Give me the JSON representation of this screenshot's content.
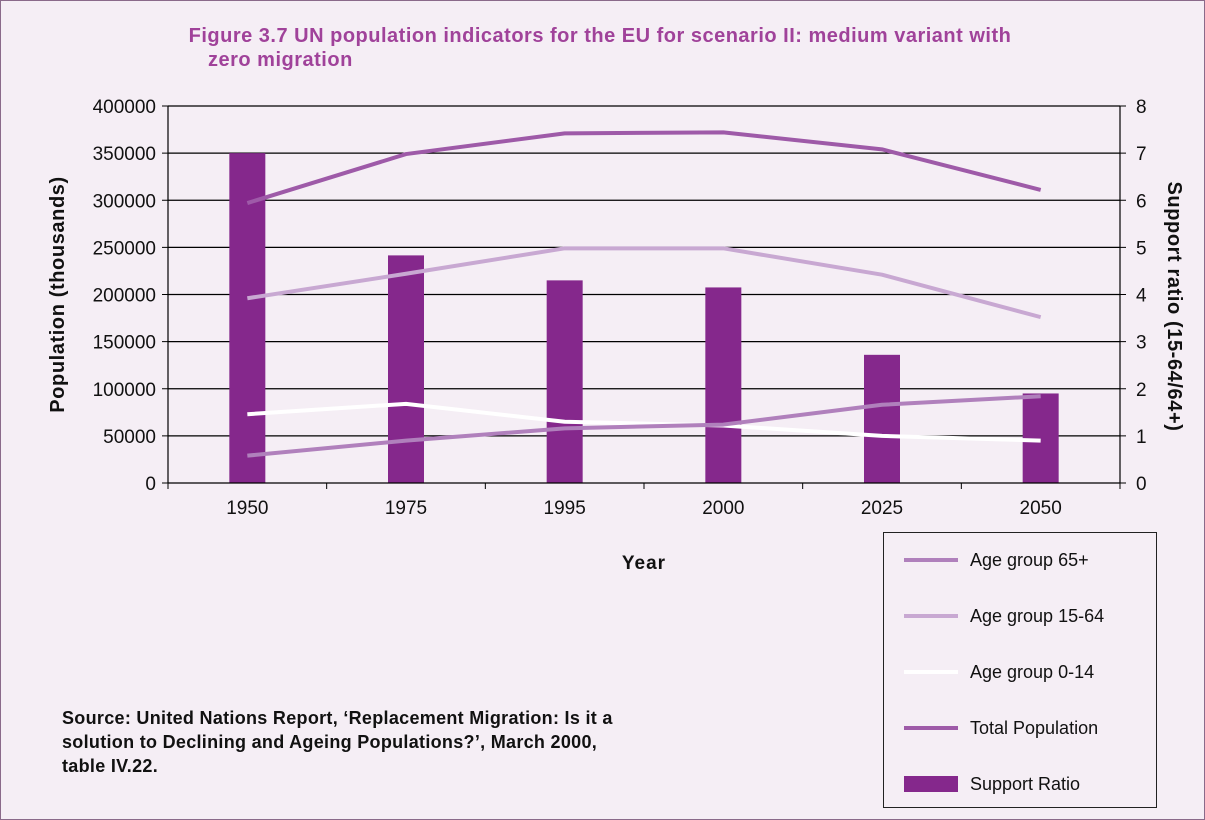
{
  "chart_data": {
    "type": "bar",
    "title_line1": "Figure 3.7 UN population indicators for the EU for scenario II: medium variant with",
    "title_line2": "zero migration",
    "xlabel": "Year",
    "ylabel_left": "Population (thousands)",
    "ylabel_right": "Support ratio (15-64/64+)",
    "categories": [
      "1950",
      "1975",
      "1995",
      "2000",
      "2025",
      "2050"
    ],
    "ylim_left": [
      0,
      400000
    ],
    "ylim_right": [
      0,
      8
    ],
    "yticks_left": [
      "0",
      "50000",
      "100000",
      "150000",
      "200000",
      "250000",
      "300000",
      "350000",
      "400000"
    ],
    "yticks_right": [
      "0",
      "1",
      "2",
      "3",
      "4",
      "5",
      "6",
      "7",
      "8"
    ],
    "grid": true,
    "series": [
      {
        "name": "Support Ratio",
        "kind": "bar",
        "axis": "right",
        "color": "#85288c",
        "values": [
          7.0,
          4.83,
          4.3,
          4.15,
          2.72,
          1.9
        ]
      },
      {
        "name": "Total Population",
        "kind": "line",
        "axis": "left",
        "color": "#9e5aa8",
        "values": [
          297000,
          349000,
          371000,
          372000,
          354000,
          311000
        ]
      },
      {
        "name": "Age group 15-64",
        "kind": "line",
        "axis": "left",
        "color": "#c8a8d2",
        "values": [
          196000,
          222000,
          249000,
          249000,
          221000,
          176000
        ]
      },
      {
        "name": "Age group 0-14",
        "kind": "line",
        "axis": "left",
        "color": "#ffffff",
        "values": [
          73000,
          84000,
          65000,
          61000,
          50000,
          45000
        ]
      },
      {
        "name": "Age group 65+",
        "kind": "line",
        "axis": "left",
        "color": "#b080bc",
        "values": [
          29000,
          45000,
          58000,
          62000,
          83000,
          92000
        ]
      }
    ],
    "legend_position": "bottom-right",
    "legend_order": [
      "Age group 65+",
      "Age group 15-64",
      "Age group 0-14",
      "Total Population",
      "Support Ratio"
    ]
  },
  "source": {
    "line1": "Source: United Nations Report, ‘Replacement Migration: Is it a",
    "line2": "solution to Declining and Ageing Populations?’, March 2000,",
    "line3": "table IV.22."
  }
}
